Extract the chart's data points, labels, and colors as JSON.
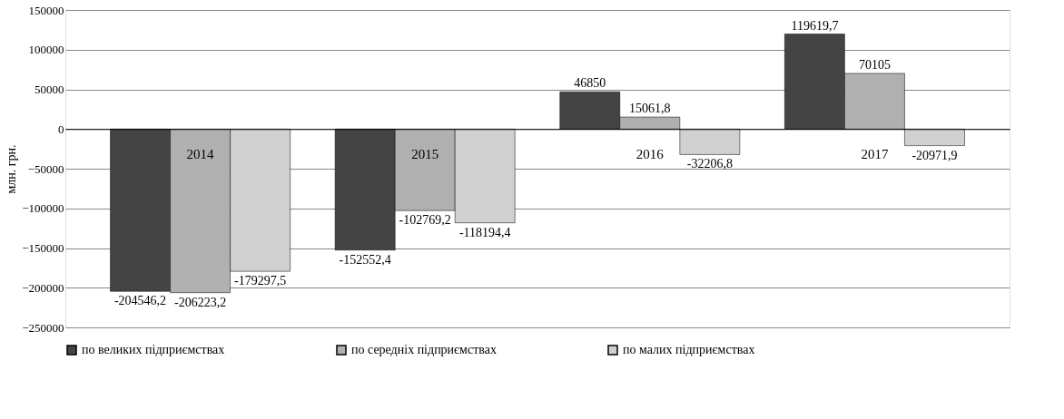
{
  "chart_data": {
    "type": "bar",
    "ylabel": "млн. грн.",
    "categories": [
      "2014",
      "2015",
      "2016",
      "2017"
    ],
    "series": [
      {
        "name": "по великих підприємствах",
        "color": "#444444",
        "values": [
          -204546.2,
          -152552.4,
          46850,
          119619.7
        ],
        "value_labels": [
          "-204546,2",
          "-152552,4",
          "46850",
          "119619,7"
        ]
      },
      {
        "name": "по середніх підприємствах",
        "color": "#b0b0b0",
        "values": [
          -206223.2,
          -102769.2,
          15061.8,
          70105
        ],
        "value_labels": [
          "-206223,2",
          "-102769,2",
          "15061,8",
          "70105"
        ]
      },
      {
        "name": "по малих підприємствах",
        "color": "#d0d0d0",
        "values": [
          -179297.5,
          -118194.4,
          -32206.8,
          -20971.9
        ],
        "value_labels": [
          "-179297,5",
          "-118194,4",
          "-32206,8",
          "-20971,9"
        ]
      }
    ],
    "ylim": [
      -250000,
      150000
    ],
    "yticks": [
      -250000,
      -200000,
      -150000,
      -100000,
      -50000,
      0,
      50000,
      100000,
      150000
    ],
    "grid": "y",
    "legend": "bottom"
  }
}
